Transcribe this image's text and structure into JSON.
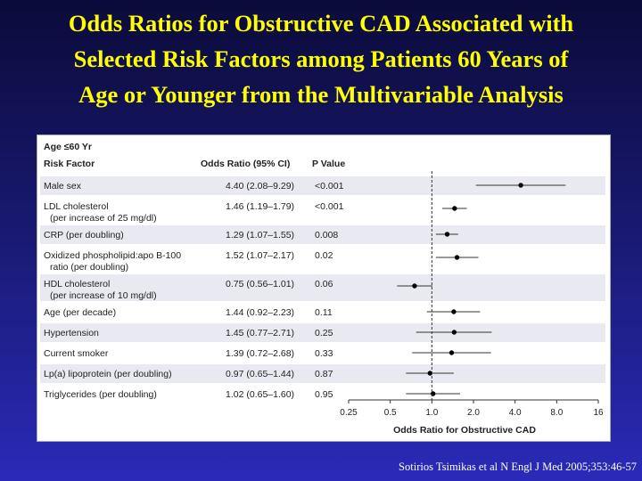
{
  "slide": {
    "title_lines": [
      "Odds Ratios for Obstructive CAD Associated with",
      "Selected Risk Factors among Patients 60 Years of",
      "Age or Younger from the Multivariable Analysis"
    ],
    "citation": "Sotirios Tsimikas et al N Engl J Med 2005;353:46-57"
  },
  "colors": {
    "title": "#ffff00",
    "row_band": "#e9e9f2",
    "point": "#000000"
  },
  "chart_data": {
    "type": "forest",
    "group_label": "Age ≤60 Yr",
    "column_headers": [
      "Risk Factor",
      "Odds Ratio (95% CI)",
      "P Value"
    ],
    "xlabel": "Odds Ratio for Obstructive CAD",
    "x_scale": "log",
    "xlim": [
      0.25,
      16
    ],
    "x_ticks": [
      "0.25",
      "0.5",
      "1.0",
      "2.0",
      "4.0",
      "8.0",
      "16"
    ],
    "reference_line": 1.0,
    "rows": [
      {
        "factor": [
          "Male sex"
        ],
        "or_text": "4.40 (2.08–9.29)",
        "p": "<0.001",
        "or": 4.4,
        "lo": 2.08,
        "hi": 9.29
      },
      {
        "factor": [
          "LDL cholesterol",
          "(per increase of 25 mg/dl)"
        ],
        "or_text": "1.46 (1.19–1.79)",
        "p": "<0.001",
        "or": 1.46,
        "lo": 1.19,
        "hi": 1.79
      },
      {
        "factor": [
          "CRP (per doubling)"
        ],
        "or_text": "1.29 (1.07–1.55)",
        "p": "0.008",
        "or": 1.29,
        "lo": 1.07,
        "hi": 1.55
      },
      {
        "factor": [
          "Oxidized phospholipid:apo B-100",
          "ratio (per doubling)"
        ],
        "or_text": "1.52 (1.07–2.17)",
        "p": "0.02",
        "or": 1.52,
        "lo": 1.07,
        "hi": 2.17
      },
      {
        "factor": [
          "HDL cholesterol",
          "(per increase of 10 mg/dl)"
        ],
        "or_text": "0.75 (0.56–1.01)",
        "p": "0.06",
        "or": 0.75,
        "lo": 0.56,
        "hi": 1.01
      },
      {
        "factor": [
          "Age (per decade)"
        ],
        "or_text": "1.44 (0.92–2.23)",
        "p": "0.11",
        "or": 1.44,
        "lo": 0.92,
        "hi": 2.23
      },
      {
        "factor": [
          "Hypertension"
        ],
        "or_text": "1.45 (0.77–2.71)",
        "p": "0.25",
        "or": 1.45,
        "lo": 0.77,
        "hi": 2.71
      },
      {
        "factor": [
          "Current smoker"
        ],
        "or_text": "1.39 (0.72–2.68)",
        "p": "0.33",
        "or": 1.39,
        "lo": 0.72,
        "hi": 2.68
      },
      {
        "factor": [
          "Lp(a) lipoprotein (per doubling)"
        ],
        "or_text": "0.97 (0.65–1.44)",
        "p": "0.87",
        "or": 0.97,
        "lo": 0.65,
        "hi": 1.44
      },
      {
        "factor": [
          "Triglycerides (per doubling)"
        ],
        "or_text": "1.02 (0.65–1.60)",
        "p": "0.95",
        "or": 1.02,
        "lo": 0.65,
        "hi": 1.6
      }
    ]
  }
}
